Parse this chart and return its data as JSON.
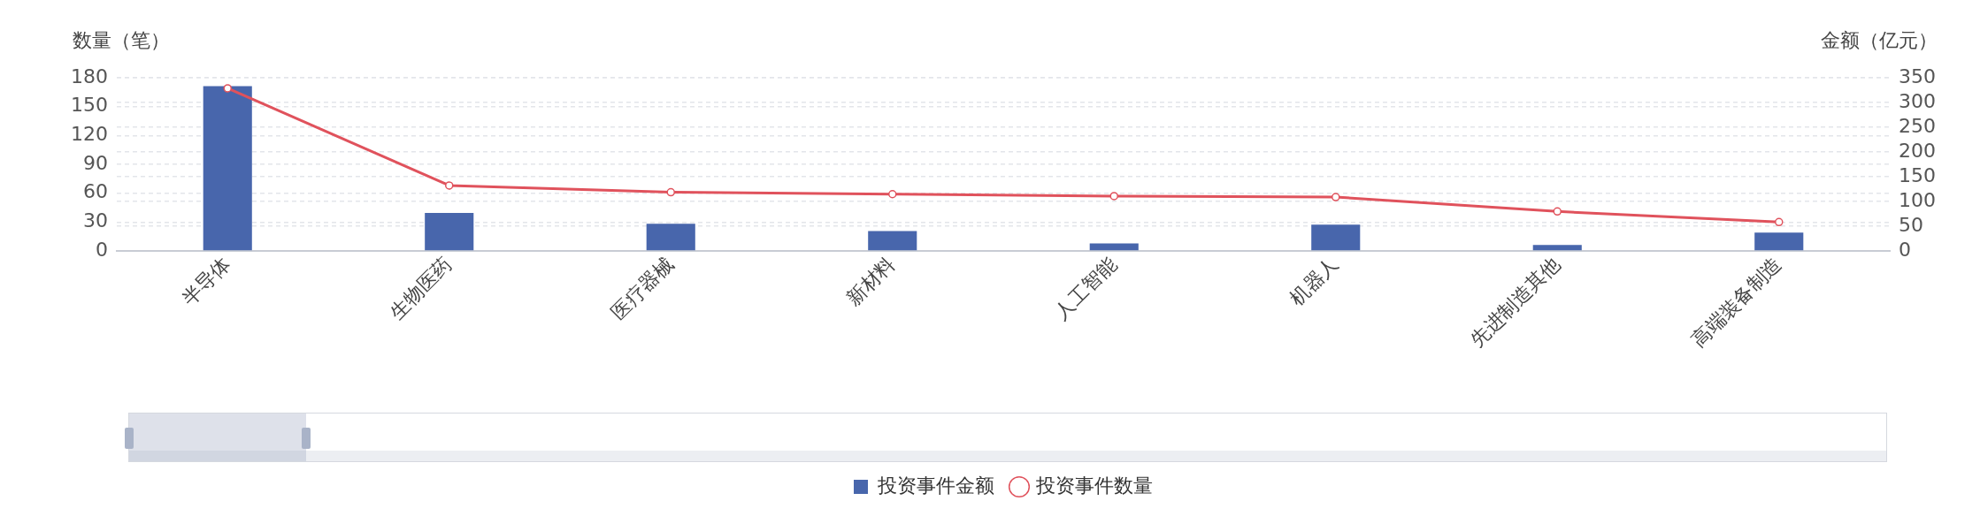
{
  "chart_data": {
    "type": "bar",
    "ylabel": "数量（笔）",
    "y2label": "金额（亿元）",
    "categories": [
      "半导体",
      "生物医药",
      "医疗器械",
      "新材料",
      "人工智能",
      "机器人",
      "先进制造其他",
      "高端装备制造"
    ],
    "series": [
      {
        "name": "投资事件金额",
        "axis": "y2",
        "color": "#4866ac",
        "values": [
          333,
          77,
          55,
          40,
          15,
          53,
          12,
          37
        ]
      },
      {
        "name": "投资事件数量",
        "type": "line",
        "axis": "y",
        "color": "#e0525c",
        "marker": "circle",
        "values": [
          169,
          68,
          61,
          59,
          57,
          56,
          41,
          30
        ]
      }
    ],
    "ylim": [
      0,
      180
    ],
    "yticks": [
      0,
      30,
      60,
      90,
      120,
      150,
      180
    ],
    "y2lim": [
      0,
      350
    ],
    "y2ticks": [
      0,
      50,
      100,
      150,
      200,
      250,
      300,
      350
    ],
    "grid": "y",
    "legend": "bottom"
  }
}
